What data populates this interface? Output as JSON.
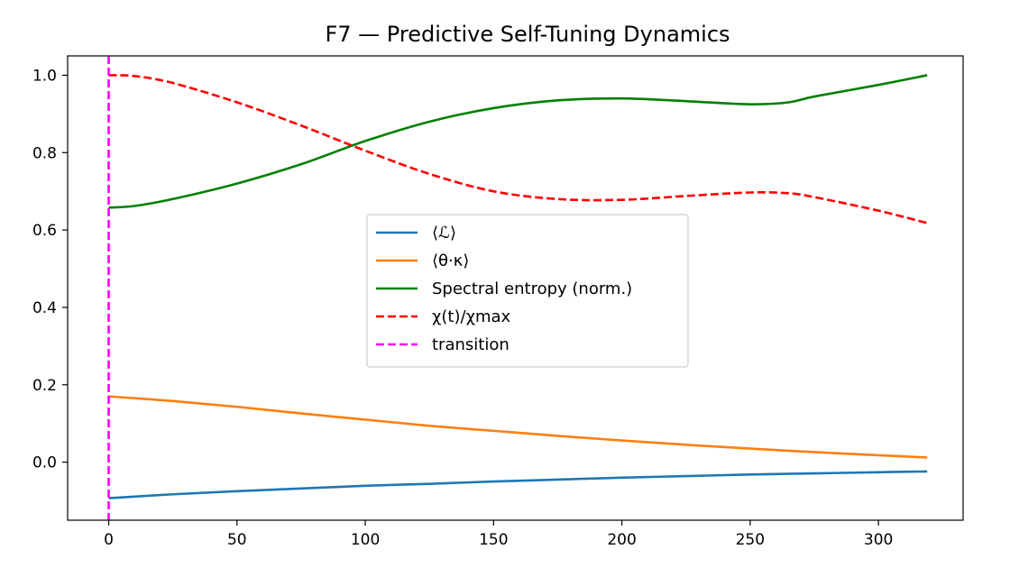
{
  "chart_data": {
    "type": "line",
    "title": "F7 — Predictive Self-Tuning Dynamics",
    "xlabel": "",
    "ylabel": "",
    "xlim": [
      -16,
      333
    ],
    "ylim": [
      -0.15,
      1.05
    ],
    "xticks": [
      0,
      50,
      100,
      150,
      200,
      250,
      300
    ],
    "yticks": [
      0.0,
      0.2,
      0.4,
      0.6,
      0.8,
      1.0
    ],
    "xtick_labels": [
      "0",
      "50",
      "100",
      "150",
      "200",
      "250",
      "300"
    ],
    "ytick_labels": [
      "0.0",
      "0.2",
      "0.4",
      "0.6",
      "0.8",
      "1.0"
    ],
    "grid": false,
    "legend_position": "center",
    "series": [
      {
        "name": "⟨ℒ⟩",
        "color": "#1f77b4",
        "style": "solid",
        "x": [
          0,
          25,
          50,
          75,
          100,
          125,
          150,
          175,
          200,
          225,
          250,
          275,
          300,
          319
        ],
        "y": [
          -0.093,
          -0.083,
          -0.075,
          -0.068,
          -0.061,
          -0.056,
          -0.05,
          -0.045,
          -0.04,
          -0.036,
          -0.032,
          -0.029,
          -0.026,
          -0.024
        ]
      },
      {
        "name": "⟨θ·κ⟩",
        "color": "#ff7f0e",
        "style": "solid",
        "x": [
          0,
          25,
          50,
          75,
          100,
          125,
          150,
          175,
          200,
          225,
          250,
          275,
          300,
          319
        ],
        "y": [
          0.17,
          0.158,
          0.143,
          0.126,
          0.11,
          0.094,
          0.081,
          0.068,
          0.056,
          0.045,
          0.035,
          0.026,
          0.018,
          0.012
        ]
      },
      {
        "name": "Spectral entropy (norm.)",
        "color": "#008000",
        "style": "solid",
        "x": [
          0,
          10,
          25,
          50,
          75,
          100,
          125,
          150,
          175,
          200,
          225,
          250,
          265,
          275,
          300,
          319
        ],
        "y": [
          0.658,
          0.662,
          0.68,
          0.72,
          0.77,
          0.83,
          0.88,
          0.915,
          0.935,
          0.94,
          0.933,
          0.925,
          0.93,
          0.945,
          0.975,
          1.0
        ]
      },
      {
        "name": "χ(t)/χmax",
        "color": "#ff0000",
        "style": "dashed",
        "x": [
          0,
          10,
          25,
          50,
          75,
          100,
          125,
          150,
          175,
          200,
          225,
          250,
          265,
          275,
          300,
          319
        ],
        "y": [
          1.0,
          0.998,
          0.98,
          0.93,
          0.87,
          0.805,
          0.745,
          0.7,
          0.68,
          0.678,
          0.688,
          0.697,
          0.695,
          0.685,
          0.65,
          0.618
        ]
      }
    ],
    "vlines": [
      {
        "name": "transition",
        "color": "#ff00ff",
        "style": "dashed",
        "x": 0
      }
    ]
  }
}
